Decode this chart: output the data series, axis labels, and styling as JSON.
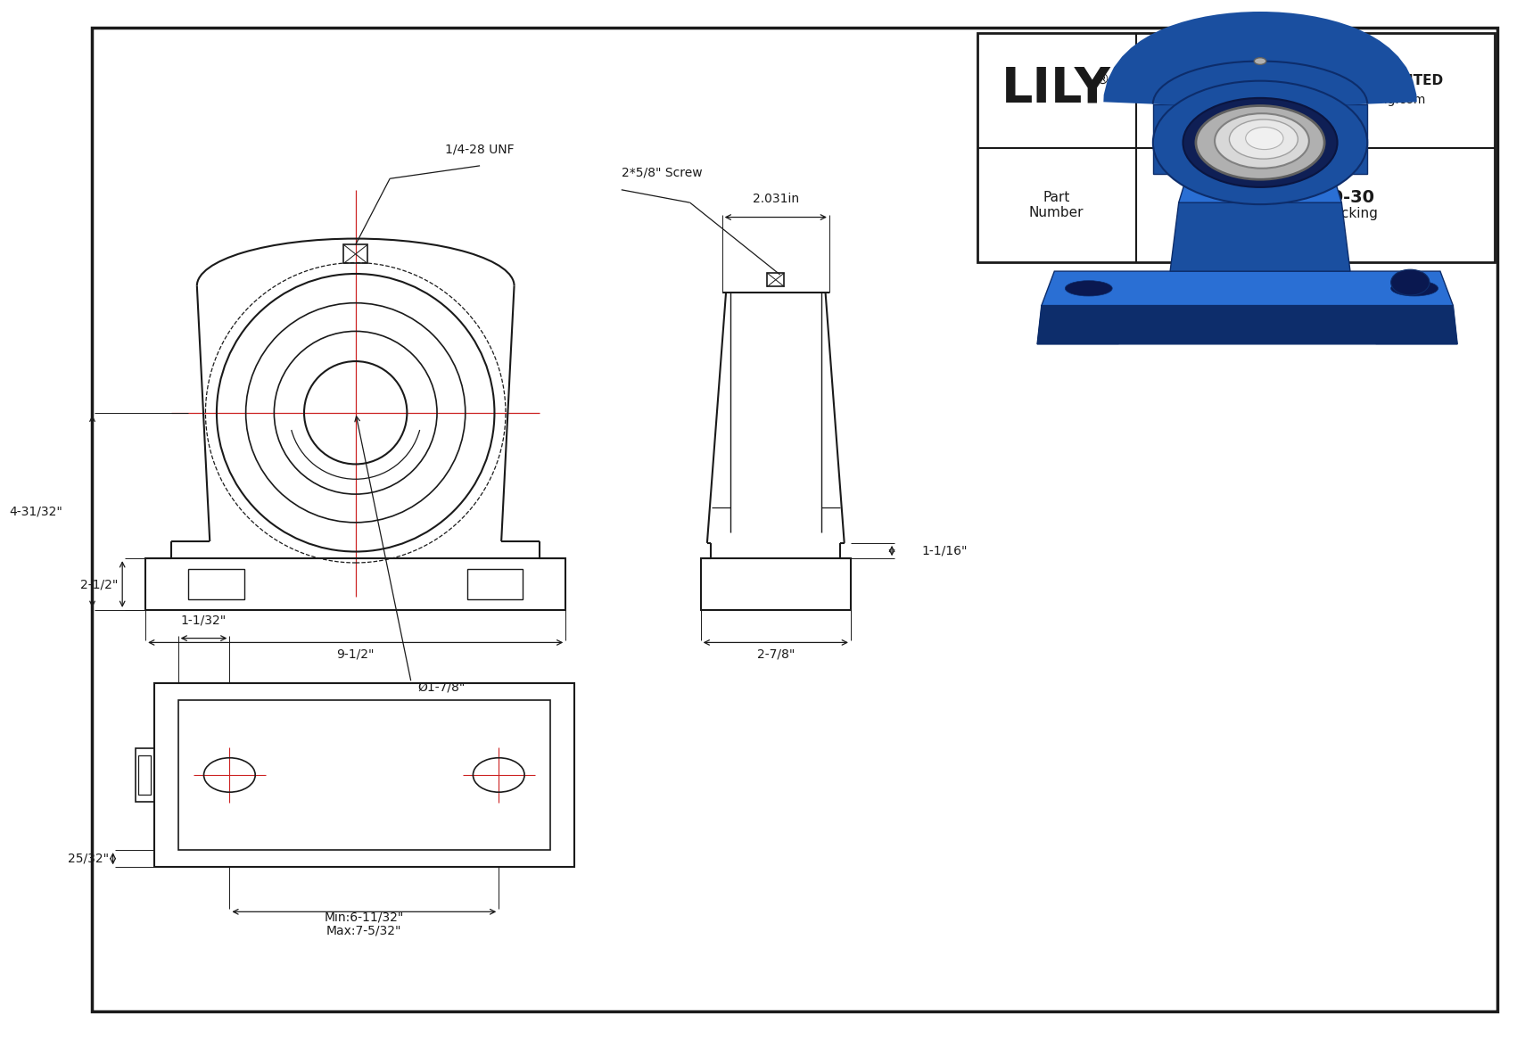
{
  "bg_color": "#ffffff",
  "lc": "#1a1a1a",
  "rc": "#cc2222",
  "blue1": "#1a4fa0",
  "blue2": "#0d2d6b",
  "blue3": "#2a6fd4",
  "blue4": "#4488e8",
  "silver1": "#b0b0b0",
  "silver2": "#d8d8d8",
  "silver3": "#e8e8e8",
  "title_block": {
    "company": "SHANGHAI LILY BEARING LIMITED",
    "email": "Email: lilybearing@lily-bearing.com",
    "part_number": "UCEP210-30",
    "locking": "Set Screw Locking",
    "logo": "LILY",
    "reg": "®",
    "part_label": "Part\nNumber"
  },
  "dims": {
    "total_width": "9-1/2\"",
    "bore_dia": "Ø1-7/8\"",
    "height": "4-31/32\"",
    "base_height": "2-1/2\"",
    "thread": "1/4-28 UNF",
    "screw": "2*5/8\" Screw",
    "top_width": "2.031in",
    "base_width": "2-7/8\"",
    "cap_height": "1-1/16\"",
    "bolt_offset": "1-1/32\"",
    "side_offset": "25/32\"",
    "min_span": "Min:6-11/32\"",
    "max_span": "Max:7-5/32\""
  }
}
